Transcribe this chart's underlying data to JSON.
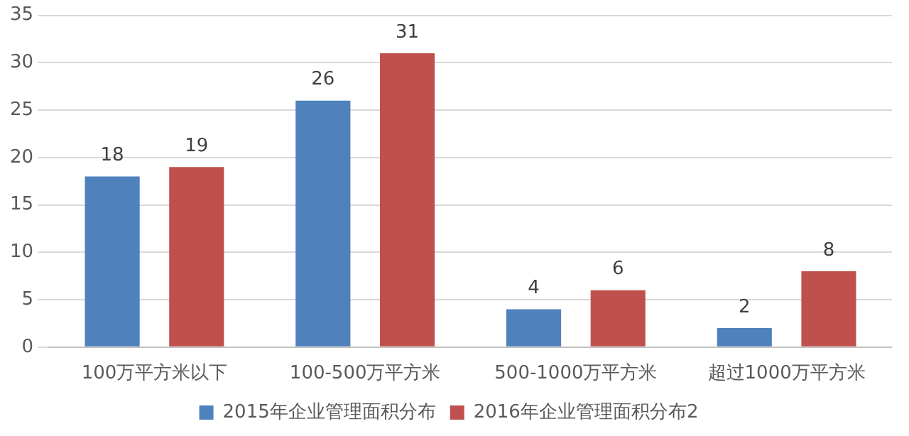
{
  "chart_data": {
    "type": "bar",
    "categories": [
      "100万平方米以下",
      "100-500万平方米",
      "500-1000万平方米",
      "超过1000万平方米"
    ],
    "series": [
      {
        "name": "2015年企业管理面积分布",
        "color": "#4f81bd",
        "values": [
          18,
          26,
          4,
          2
        ]
      },
      {
        "name": "2016年企业管理面积分布2",
        "color": "#c0504d",
        "values": [
          19,
          31,
          6,
          8
        ]
      }
    ],
    "ylim": [
      0,
      35
    ],
    "yticks": [
      0,
      5,
      10,
      15,
      20,
      25,
      30,
      35
    ],
    "grid": "y",
    "legend": "bottom",
    "data_labels": true
  }
}
